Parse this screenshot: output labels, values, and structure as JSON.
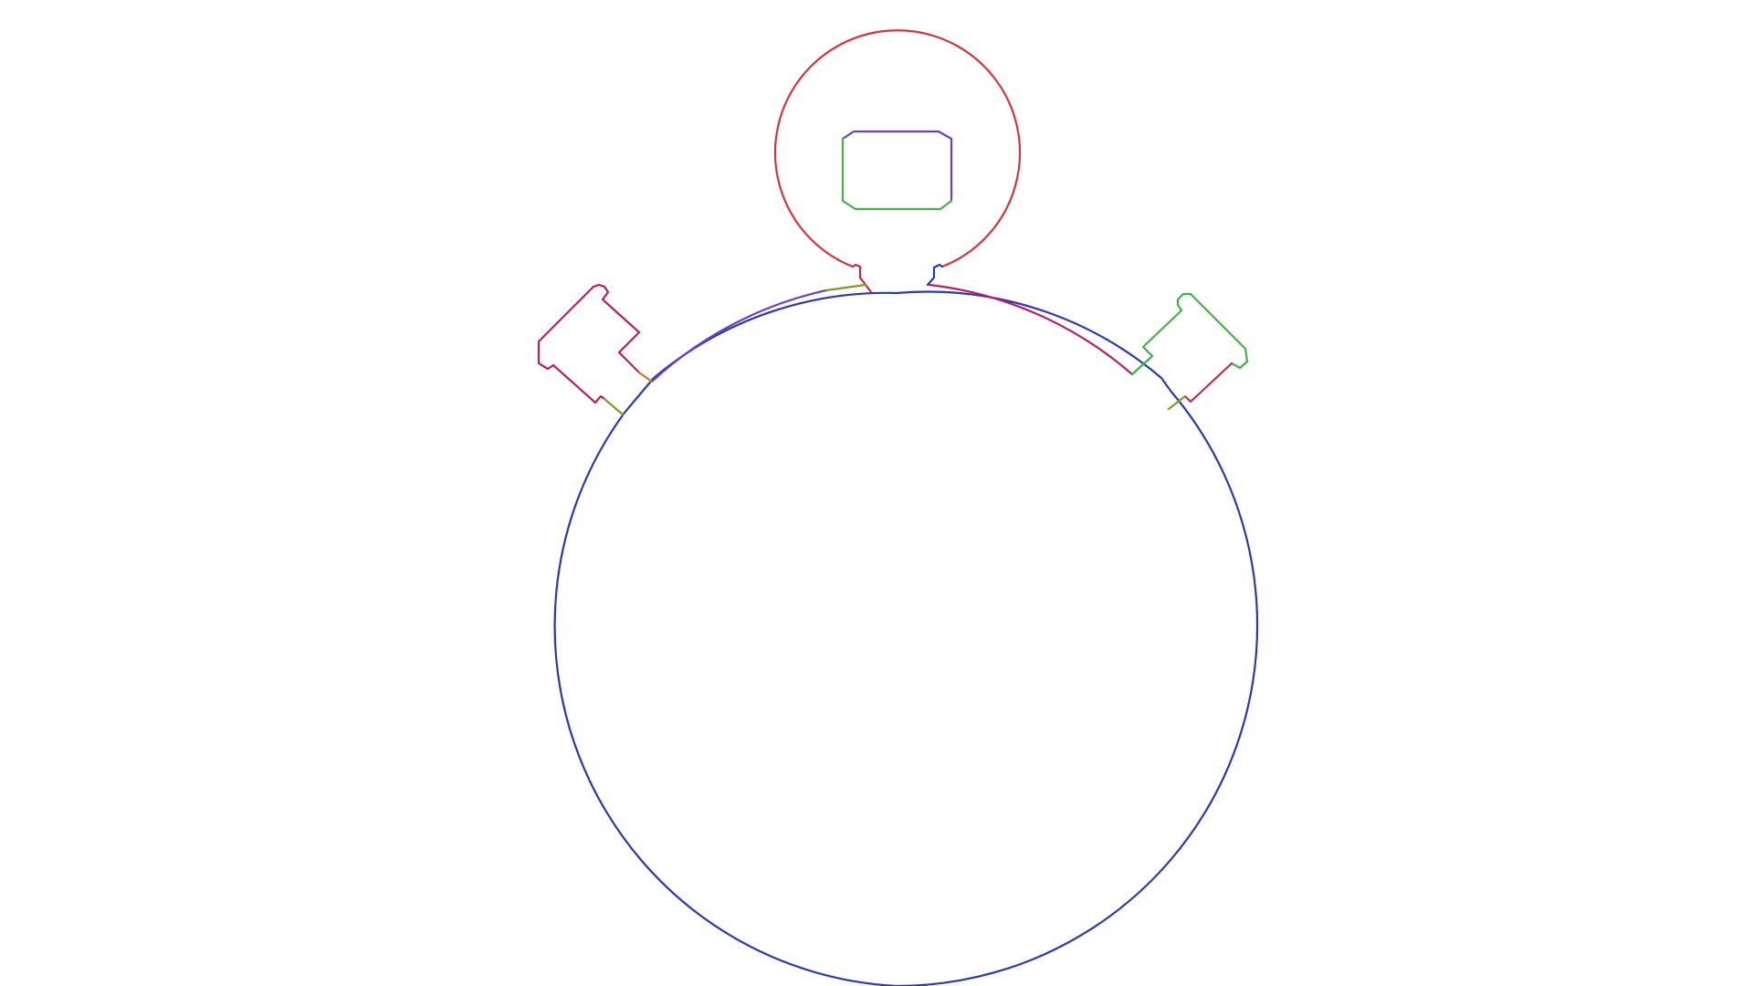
{
  "diagram": {
    "subject": "stopwatch-outline",
    "colors": {
      "red": "#d0363d",
      "blue": "#2a3aa8",
      "green": "#45b04a",
      "purple": "#6a3fc6",
      "magenta": "#b3206a",
      "olive": "#7a9a2a",
      "orange": "#c8782a",
      "crimson": "#c22a4a"
    }
  }
}
